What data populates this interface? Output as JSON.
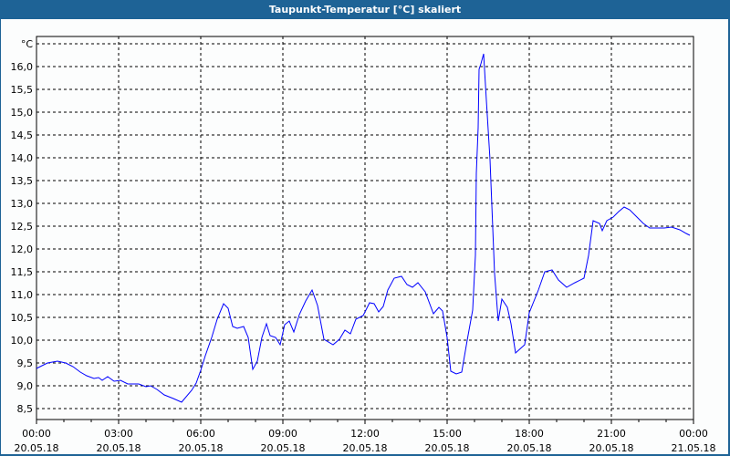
{
  "window": {
    "title": "Taupunkt-Temperatur [°C] skaliert"
  },
  "colors": {
    "titlebar": "#1e6396",
    "series": "#0000ff",
    "grid": "#000000",
    "background": "#fcfdfd"
  },
  "chart_data": {
    "type": "line",
    "title": "Taupunkt-Temperatur [°C] skaliert",
    "ylabel": "°C",
    "xlabel": "",
    "ylim": [
      8.26,
      16.66
    ],
    "xlim": [
      "20.05.18 00:00",
      "21.05.18 00:00"
    ],
    "grid": true,
    "legend": "none",
    "y_ticks": [
      "8,5",
      "9,0",
      "9,5",
      "10,0",
      "10,5",
      "11,0",
      "11,5",
      "12,0",
      "12,5",
      "13,0",
      "13,5",
      "14,0",
      "14,5",
      "15,0",
      "15,5",
      "16,0"
    ],
    "y_tick_values": [
      8.5,
      9.0,
      9.5,
      10.0,
      10.5,
      11.0,
      11.5,
      12.0,
      12.5,
      13.0,
      13.5,
      14.0,
      14.5,
      15.0,
      15.5,
      16.0
    ],
    "x_ticks": [
      {
        "time": "00:00",
        "date": "20.05.18"
      },
      {
        "time": "03:00",
        "date": "20.05.18"
      },
      {
        "time": "06:00",
        "date": "20.05.18"
      },
      {
        "time": "09:00",
        "date": "20.05.18"
      },
      {
        "time": "12:00",
        "date": "20.05.18"
      },
      {
        "time": "15:00",
        "date": "20.05.18"
      },
      {
        "time": "18:00",
        "date": "20.05.18"
      },
      {
        "time": "21:00",
        "date": "20.05.18"
      },
      {
        "time": "00:00",
        "date": "21.05.18"
      }
    ],
    "series": [
      {
        "points": [
          [
            "00:00",
            9.38
          ],
          [
            "00:24",
            9.5
          ],
          [
            "00:46",
            9.54
          ],
          [
            "01:04",
            9.5
          ],
          [
            "01:20",
            9.42
          ],
          [
            "01:36",
            9.3
          ],
          [
            "01:50",
            9.22
          ],
          [
            "02:06",
            9.16
          ],
          [
            "02:16",
            9.18
          ],
          [
            "02:24",
            9.12
          ],
          [
            "02:36",
            9.2
          ],
          [
            "02:50",
            9.1
          ],
          [
            "03:04",
            9.12
          ],
          [
            "03:20",
            9.04
          ],
          [
            "03:44",
            9.04
          ],
          [
            "04:00",
            8.98
          ],
          [
            "04:10",
            9.0
          ],
          [
            "04:24",
            8.92
          ],
          [
            "04:40",
            8.8
          ],
          [
            "05:00",
            8.72
          ],
          [
            "05:18",
            8.64
          ],
          [
            "05:40",
            8.9
          ],
          [
            "05:50",
            9.06
          ],
          [
            "06:00",
            9.34
          ],
          [
            "06:10",
            9.66
          ],
          [
            "06:24",
            10.06
          ],
          [
            "06:36",
            10.46
          ],
          [
            "06:50",
            10.8
          ],
          [
            "07:00",
            10.7
          ],
          [
            "07:10",
            10.3
          ],
          [
            "07:20",
            10.26
          ],
          [
            "07:34",
            10.3
          ],
          [
            "07:44",
            10.06
          ],
          [
            "07:54",
            9.36
          ],
          [
            "08:04",
            9.54
          ],
          [
            "08:14",
            10.06
          ],
          [
            "08:24",
            10.36
          ],
          [
            "08:32",
            10.1
          ],
          [
            "08:44",
            10.06
          ],
          [
            "08:54",
            9.9
          ],
          [
            "09:04",
            10.34
          ],
          [
            "09:14",
            10.42
          ],
          [
            "09:24",
            10.18
          ],
          [
            "09:36",
            10.56
          ],
          [
            "09:50",
            10.86
          ],
          [
            "10:04",
            11.1
          ],
          [
            "10:16",
            10.76
          ],
          [
            "10:30",
            10.02
          ],
          [
            "10:50",
            9.9
          ],
          [
            "11:04",
            10.02
          ],
          [
            "11:16",
            10.22
          ],
          [
            "11:28",
            10.14
          ],
          [
            "11:40",
            10.46
          ],
          [
            "11:56",
            10.54
          ],
          [
            "12:10",
            10.82
          ],
          [
            "12:20",
            10.8
          ],
          [
            "12:30",
            10.62
          ],
          [
            "12:40",
            10.74
          ],
          [
            "12:50",
            11.1
          ],
          [
            "13:04",
            11.36
          ],
          [
            "13:20",
            11.4
          ],
          [
            "13:32",
            11.22
          ],
          [
            "13:44",
            11.16
          ],
          [
            "13:56",
            11.26
          ],
          [
            "14:12",
            11.06
          ],
          [
            "14:30",
            10.58
          ],
          [
            "14:42",
            10.72
          ],
          [
            "14:50",
            10.64
          ],
          [
            "15:00",
            10.06
          ],
          [
            "15:08",
            9.32
          ],
          [
            "15:20",
            9.26
          ],
          [
            "15:32",
            9.3
          ],
          [
            "15:44",
            10.0
          ],
          [
            "15:56",
            10.66
          ],
          [
            "16:02",
            11.86
          ],
          [
            "16:04",
            13.66
          ],
          [
            "16:08",
            14.66
          ],
          [
            "16:10",
            15.94
          ],
          [
            "16:14",
            16.06
          ],
          [
            "16:20",
            16.28
          ],
          [
            "16:26",
            15.26
          ],
          [
            "16:34",
            13.96
          ],
          [
            "16:40",
            12.46
          ],
          [
            "16:44",
            11.46
          ],
          [
            "16:52",
            10.42
          ],
          [
            "17:00",
            10.9
          ],
          [
            "17:12",
            10.72
          ],
          [
            "17:20",
            10.36
          ],
          [
            "17:30",
            9.72
          ],
          [
            "17:50",
            9.9
          ],
          [
            "18:00",
            10.6
          ],
          [
            "18:20",
            11.1
          ],
          [
            "18:34",
            11.5
          ],
          [
            "18:50",
            11.54
          ],
          [
            "19:04",
            11.32
          ],
          [
            "19:22",
            11.16
          ],
          [
            "19:40",
            11.26
          ],
          [
            "20:00",
            11.36
          ],
          [
            "20:10",
            11.86
          ],
          [
            "20:20",
            12.62
          ],
          [
            "20:34",
            12.56
          ],
          [
            "20:40",
            12.4
          ],
          [
            "20:50",
            12.62
          ],
          [
            "21:04",
            12.7
          ],
          [
            "21:16",
            12.82
          ],
          [
            "21:28",
            12.92
          ],
          [
            "21:40",
            12.86
          ],
          [
            "21:54",
            12.72
          ],
          [
            "22:10",
            12.56
          ],
          [
            "22:24",
            12.46
          ],
          [
            "22:40",
            12.46
          ],
          [
            "22:56",
            12.46
          ],
          [
            "23:12",
            12.48
          ],
          [
            "23:30",
            12.42
          ],
          [
            "23:44",
            12.34
          ],
          [
            "23:52",
            12.3
          ]
        ]
      }
    ]
  }
}
